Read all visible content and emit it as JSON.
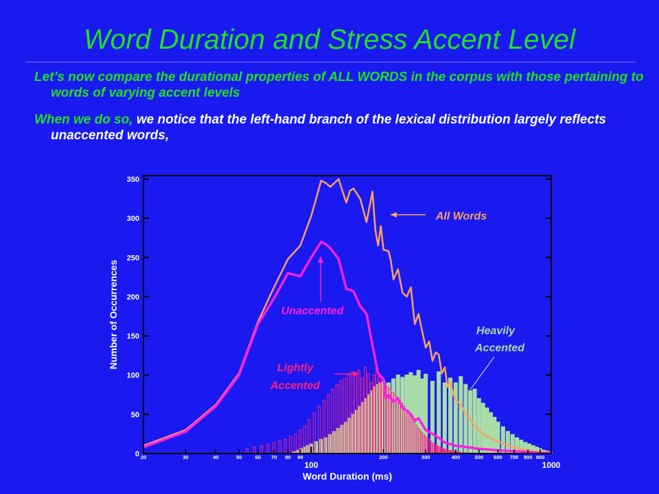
{
  "slide": {
    "title": "Word Duration and Stress Accent Level",
    "bullet1": "Let’s now compare the durational properties of ALL WORDS in the corpus with those pertaining to words of varying accent levels",
    "bullet2_lead": "When we do so,",
    "bullet2_rest": " we notice that the left-hand branch of the lexical distribution largely reflects unaccented words,"
  },
  "colors": {
    "background": "#1a1af0",
    "title": "#22e020",
    "all_words": "#ffa060",
    "unaccented": "#ff20e0",
    "lightly": "#ff2080",
    "heavily_fill": "#a8dca8",
    "heavily_label": "#a8dca8"
  },
  "chart_data": {
    "type": "area",
    "xlabel": "Word Duration (ms)",
    "ylabel": "Number of Occurrences",
    "x_scale": "log",
    "xlim": [
      20,
      1000
    ],
    "ylim": [
      0,
      350
    ],
    "grid": false,
    "y_ticks": [
      0,
      50,
      100,
      150,
      200,
      250,
      300,
      350
    ],
    "x_ticks_minor": [
      20,
      30,
      40,
      50,
      60,
      70,
      80,
      90,
      200,
      300,
      400,
      500,
      600,
      700,
      800,
      900
    ],
    "x_ticks_major": [
      100,
      1000
    ],
    "annotations": [
      "All Words",
      "Unaccented",
      "Lightly Accented",
      "Heavily Accented"
    ],
    "series": [
      {
        "name": "All Words",
        "style": "line",
        "x": [
          20,
          30,
          40,
          50,
          60,
          70,
          80,
          90,
          100,
          110,
          115,
          120,
          130,
          140,
          145,
          150,
          160,
          165,
          170,
          180,
          185,
          190,
          195,
          200,
          210,
          215,
          220,
          230,
          240,
          250,
          260,
          270,
          280,
          290,
          300,
          310,
          320,
          330,
          340,
          350,
          360,
          370,
          380,
          390,
          400,
          420,
          440,
          460,
          480,
          500,
          520,
          540,
          560,
          580,
          600,
          640,
          680,
          720,
          760,
          800,
          850,
          900,
          950,
          1000
        ],
        "y": [
          10,
          30,
          62,
          102,
          168,
          212,
          248,
          265,
          303,
          348,
          345,
          340,
          350,
          320,
          335,
          338,
          325,
          310,
          295,
          334,
          285,
          265,
          290,
          260,
          258,
          245,
          222,
          235,
          205,
          200,
          212,
          165,
          178,
          156,
          135,
          143,
          118,
          129,
          126,
          102,
          110,
          85,
          92,
          76,
          68,
          63,
          50,
          45,
          35,
          30,
          25,
          22,
          20,
          17,
          15,
          12,
          9,
          7,
          5,
          4,
          3,
          2,
          1,
          1
        ]
      },
      {
        "name": "Unaccented",
        "style": "line",
        "x": [
          20,
          30,
          40,
          50,
          60,
          70,
          80,
          90,
          100,
          110,
          115,
          120,
          130,
          140,
          150,
          160,
          170,
          180,
          190,
          200,
          205,
          210,
          220,
          230,
          240,
          250,
          260,
          270,
          280,
          300,
          320,
          340,
          360,
          380,
          400,
          450,
          500,
          600,
          700,
          800,
          900,
          1000
        ],
        "y": [
          8,
          28,
          60,
          100,
          165,
          198,
          230,
          226,
          250,
          270,
          267,
          262,
          248,
          210,
          207,
          188,
          178,
          138,
          102,
          95,
          70,
          75,
          66,
          70,
          58,
          55,
          50,
          42,
          45,
          30,
          25,
          20,
          14,
          12,
          10,
          8,
          6,
          4,
          3,
          2,
          1,
          1
        ]
      },
      {
        "name": "Lightly Accented",
        "style": "bar",
        "x": [
          54,
          58,
          62,
          66,
          70,
          74,
          78,
          82,
          86,
          90,
          94,
          98,
          103,
          108,
          113,
          118,
          123,
          128,
          133,
          138,
          143,
          148,
          153,
          158,
          163,
          168,
          173,
          178,
          183,
          188,
          193,
          198,
          203,
          208,
          213,
          218,
          223,
          228,
          233,
          238,
          243,
          248,
          253,
          258,
          263,
          268,
          273,
          278,
          283,
          288,
          293,
          298,
          303,
          308,
          313,
          318,
          323,
          328,
          333,
          338,
          343,
          348,
          353,
          358,
          363,
          368,
          373,
          378,
          383,
          388,
          393,
          398,
          403,
          408,
          413,
          418,
          423,
          428,
          433,
          438
        ],
        "y": [
          6,
          8,
          10,
          12,
          14,
          16,
          18,
          22,
          25,
          30,
          35,
          43,
          52,
          60,
          68,
          75,
          82,
          88,
          93,
          96,
          100,
          104,
          100,
          106,
          96,
          110,
          102,
          90,
          100,
          108,
          98,
          92,
          88,
          85,
          82,
          78,
          75,
          72,
          68,
          64,
          60,
          56,
          52,
          48,
          44,
          40,
          36,
          32,
          30,
          27,
          24,
          22,
          20,
          18,
          16,
          14,
          12,
          11,
          10,
          9,
          8,
          7,
          6,
          6,
          5,
          5,
          4,
          4,
          3,
          3,
          3,
          2,
          2,
          2,
          2,
          1,
          1,
          1,
          1,
          1
        ]
      },
      {
        "name": "Heavily Accented",
        "style": "bar",
        "x": [
          85,
          88,
          91,
          94,
          97,
          100,
          105,
          110,
          115,
          120,
          125,
          130,
          135,
          140,
          145,
          150,
          155,
          160,
          165,
          170,
          175,
          180,
          185,
          190,
          195,
          200,
          210,
          220,
          230,
          240,
          250,
          260,
          270,
          280,
          290,
          300,
          320,
          340,
          360,
          380,
          400,
          420,
          440,
          460,
          480,
          500,
          520,
          540,
          560,
          580,
          600,
          630,
          660,
          690,
          720,
          750,
          780,
          810,
          840,
          870,
          900,
          930,
          960,
          990
        ],
        "y": [
          2,
          4,
          6,
          8,
          10,
          12,
          15,
          18,
          20,
          24,
          28,
          32,
          36,
          40,
          45,
          50,
          55,
          60,
          65,
          70,
          75,
          80,
          85,
          88,
          90,
          92,
          90,
          95,
          100,
          97,
          100,
          103,
          99,
          106,
          95,
          101,
          92,
          104,
          90,
          96,
          90,
          98,
          88,
          80,
          82,
          70,
          64,
          58,
          52,
          46,
          40,
          34,
          28,
          24,
          20,
          17,
          14,
          12,
          10,
          8,
          6,
          4,
          3,
          2
        ]
      }
    ]
  }
}
